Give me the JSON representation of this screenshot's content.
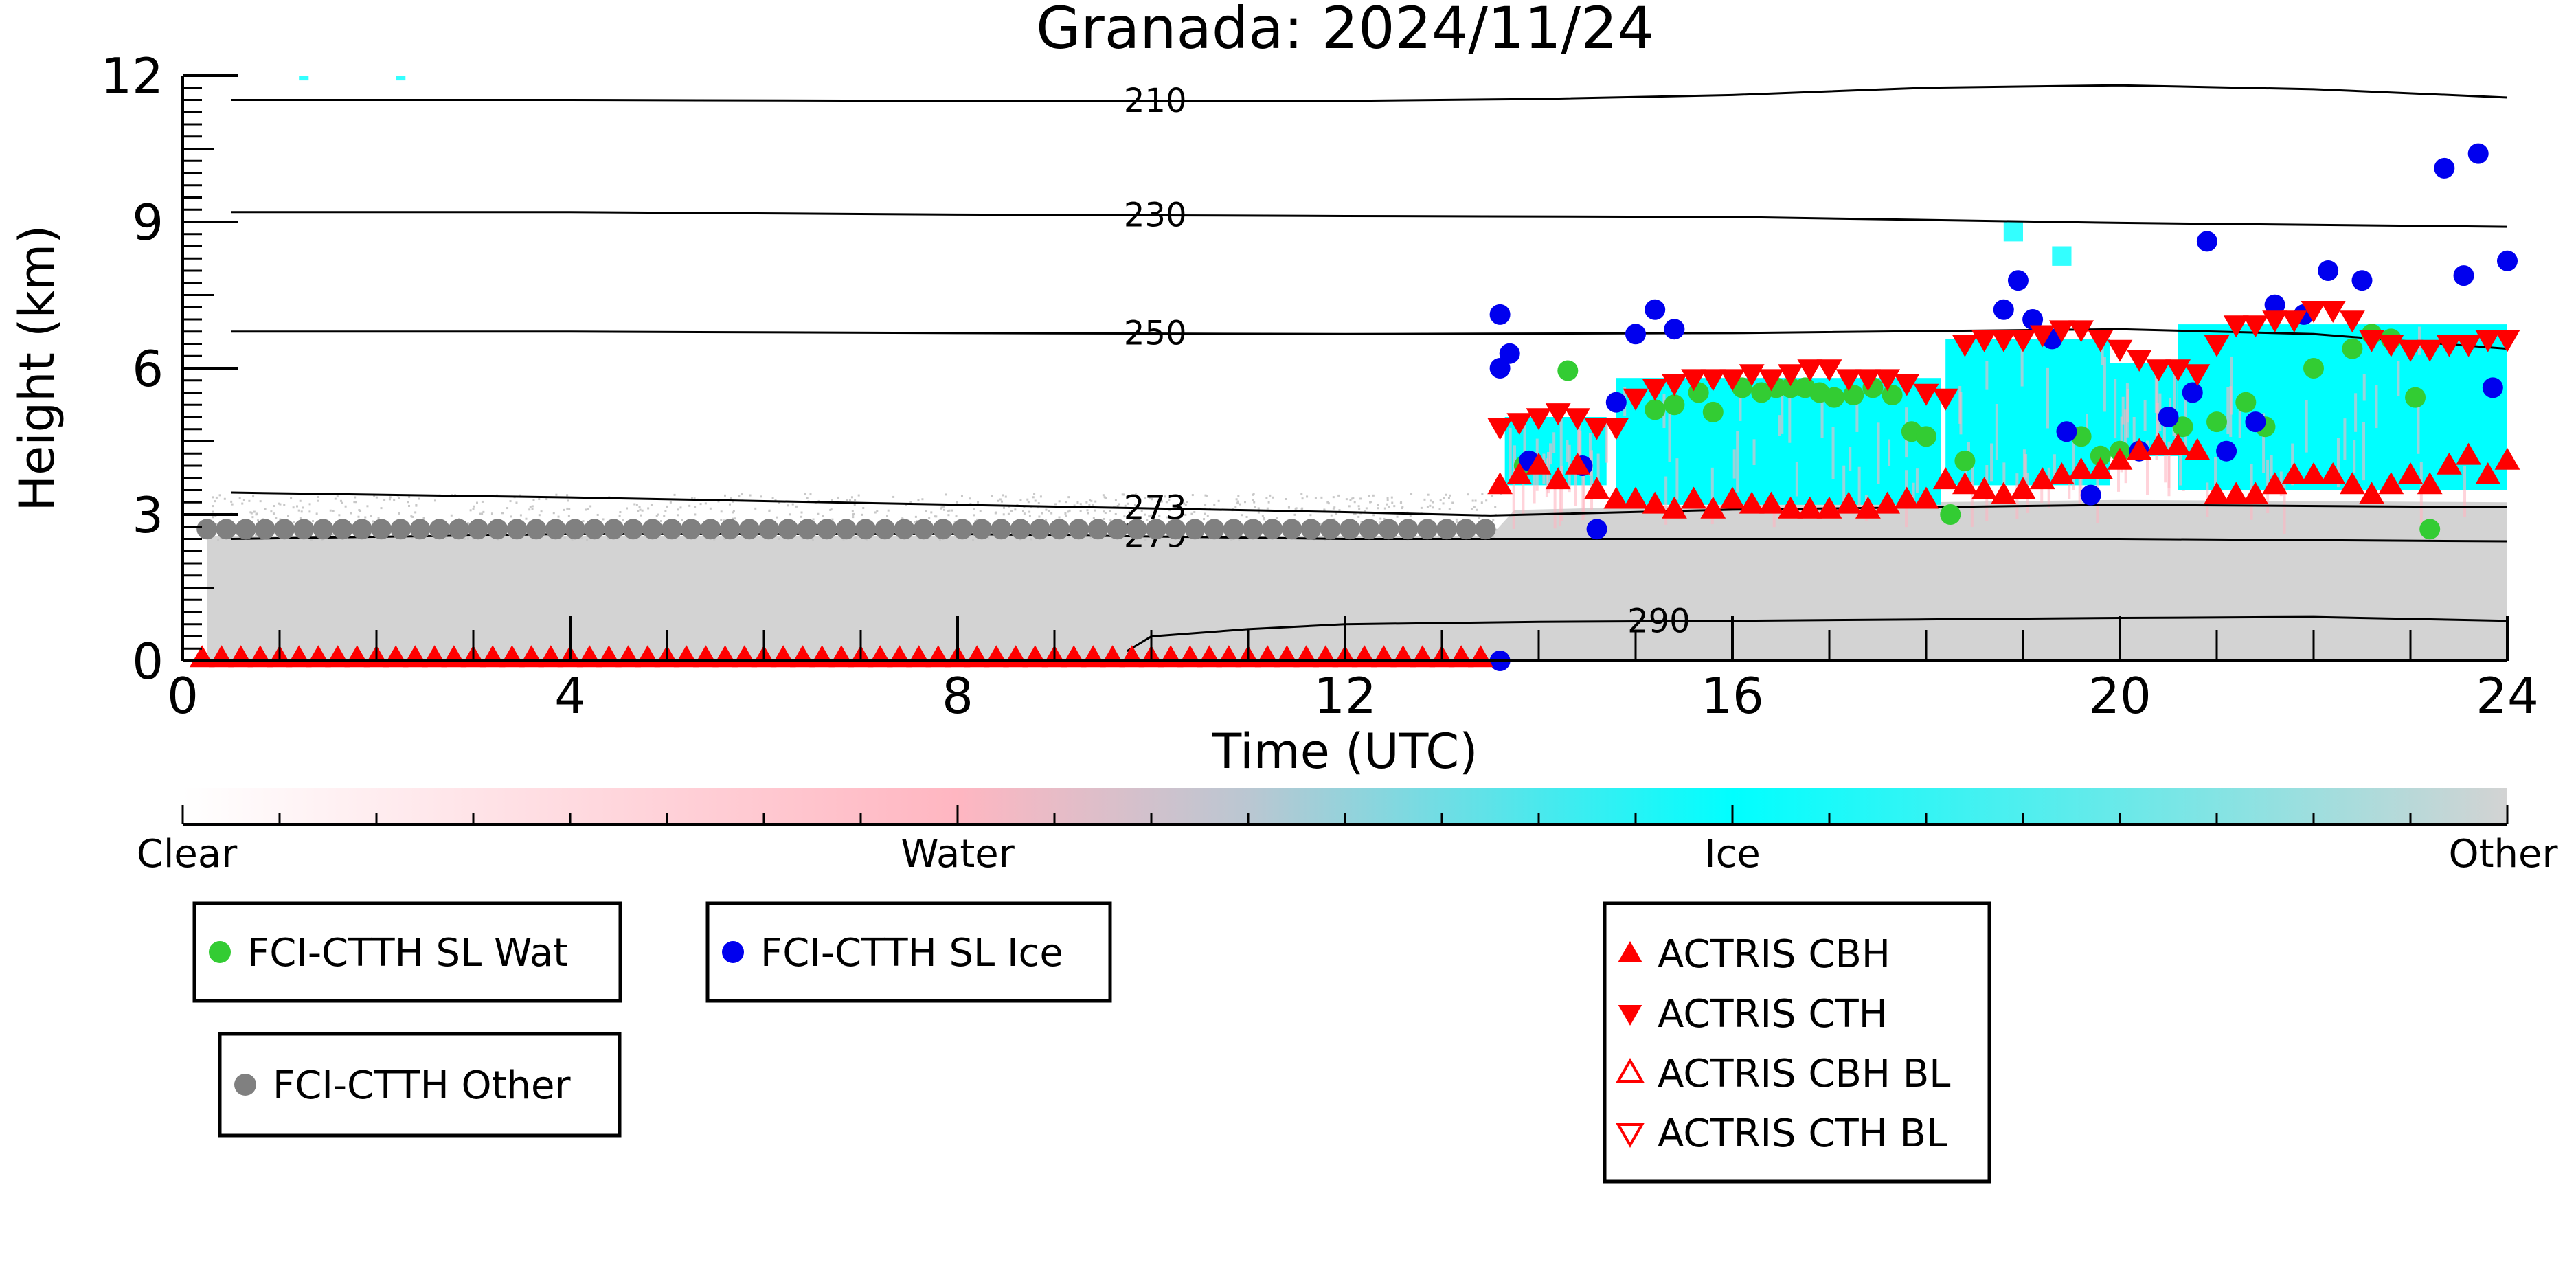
{
  "chart_data": {
    "type": "scatter",
    "title": "Granada: 2024/11/24",
    "xlabel": "Time (UTC)",
    "ylabel": "Height (km)",
    "xlim": [
      0,
      24
    ],
    "ylim": [
      0,
      12
    ],
    "xticks": [
      0,
      4,
      8,
      12,
      16,
      20,
      24
    ],
    "yticks": [
      0,
      3,
      6,
      9,
      12
    ],
    "temperature_isolines": [
      {
        "label": "210",
        "x": [
          0.5,
          4,
          8,
          12,
          14,
          16,
          18,
          20,
          22,
          24
        ],
        "y": [
          11.5,
          11.5,
          11.48,
          11.48,
          11.52,
          11.6,
          11.75,
          11.8,
          11.72,
          11.55
        ],
        "label_x": 9.7
      },
      {
        "label": "230",
        "x": [
          0.5,
          4,
          8,
          12,
          16,
          20,
          24
        ],
        "y": [
          9.2,
          9.2,
          9.15,
          9.12,
          9.1,
          8.98,
          8.9
        ],
        "label_x": 9.7
      },
      {
        "label": "250",
        "x": [
          0.5,
          4,
          8,
          12,
          16,
          20,
          22,
          24
        ],
        "y": [
          6.75,
          6.75,
          6.72,
          6.7,
          6.72,
          6.8,
          6.7,
          6.4
        ],
        "label_x": 9.7
      },
      {
        "label": "273",
        "x": [
          0.5,
          4,
          8,
          12,
          13.5,
          16,
          20,
          24
        ],
        "y": [
          3.45,
          3.35,
          3.2,
          3.05,
          2.98,
          3.1,
          3.2,
          3.15
        ],
        "label_x": 9.7
      },
      {
        "label": "279",
        "x": [
          0.5,
          4,
          8,
          12,
          16,
          20,
          24
        ],
        "y": [
          2.5,
          2.6,
          2.6,
          2.5,
          2.5,
          2.5,
          2.45
        ],
        "label_x": 9.7
      },
      {
        "label": "290",
        "x": [
          9.75,
          10,
          11,
          12,
          14,
          16,
          18,
          20,
          22,
          24
        ],
        "y": [
          0.2,
          0.5,
          0.65,
          0.75,
          0.8,
          0.82,
          0.85,
          0.88,
          0.9,
          0.82
        ],
        "label_x": 14.9
      }
    ],
    "classification_colorbar": {
      "labels": [
        "Clear",
        "Water",
        "Ice",
        "Other"
      ],
      "colors": [
        "#ffffff",
        "#ffb6c1",
        "#00ffff",
        "#d3d3d3"
      ]
    },
    "series": [
      {
        "name": "FCI-CTTH SL Wat",
        "marker": "circle",
        "color": "#33cc33",
        "x": [
          13.85,
          14.3,
          15.2,
          15.4,
          15.65,
          15.8,
          16.1,
          16.3,
          16.45,
          16.6,
          16.75,
          16.9,
          17.05,
          17.25,
          17.45,
          17.65,
          17.85,
          18.0,
          18.25,
          18.4,
          19.6,
          19.8,
          20.0,
          20.65,
          21.0,
          21.3,
          21.5,
          22.0,
          22.4,
          22.6,
          22.8,
          23.05,
          23.2
        ],
        "y": [
          4.0,
          5.95,
          5.15,
          5.25,
          5.5,
          5.1,
          5.6,
          5.5,
          5.6,
          5.6,
          5.6,
          5.5,
          5.4,
          5.45,
          5.6,
          5.45,
          4.7,
          4.6,
          3.0,
          4.1,
          4.6,
          4.2,
          4.3,
          4.8,
          4.9,
          5.3,
          4.8,
          6.0,
          6.4,
          6.7,
          6.6,
          5.4,
          2.7
        ]
      },
      {
        "name": "FCI-CTTH SL Ice",
        "marker": "circle",
        "color": "#0000ee",
        "x": [
          13.6,
          13.6,
          13.7,
          13.9,
          14.45,
          14.6,
          14.8,
          15.0,
          15.2,
          15.4,
          18.8,
          18.95,
          19.1,
          19.3,
          19.45,
          19.7,
          20.2,
          20.5,
          20.75,
          20.9,
          21.1,
          21.4,
          21.6,
          21.9,
          22.15,
          22.5,
          23.35,
          23.55,
          23.7,
          23.85,
          24.0,
          13.6
        ],
        "y": [
          7.1,
          6.0,
          6.3,
          4.1,
          4.0,
          2.7,
          5.3,
          6.7,
          7.2,
          6.8,
          7.2,
          7.8,
          7.0,
          6.6,
          4.7,
          3.4,
          4.3,
          5.0,
          5.5,
          8.6,
          4.3,
          4.9,
          7.3,
          7.1,
          8.0,
          7.8,
          10.1,
          7.9,
          10.4,
          5.6,
          8.2,
          0.0
        ]
      },
      {
        "name": "FCI-CTTH Other",
        "marker": "circle",
        "color": "#808080",
        "x_start": 0.25,
        "x_end": 13.6,
        "x_step": 0.2,
        "y_constant": 2.7
      },
      {
        "name": "ACTRIS CBH",
        "marker": "triangle-up",
        "color": "#ff0000",
        "x": [
          0.2,
          0.4,
          0.6,
          0.8,
          1.0,
          1.2,
          1.4,
          1.6,
          1.8,
          2.0,
          2.2,
          2.4,
          2.6,
          2.8,
          3.0,
          3.2,
          3.4,
          3.6,
          3.8,
          4.0,
          4.2,
          4.4,
          4.6,
          4.8,
          5.0,
          5.2,
          5.4,
          5.6,
          5.8,
          6.0,
          6.2,
          6.4,
          6.6,
          6.8,
          7.0,
          7.2,
          7.4,
          7.6,
          7.8,
          8.0,
          8.2,
          8.4,
          8.6,
          8.8,
          9.0,
          9.2,
          9.4,
          9.6,
          9.8,
          10.0,
          10.2,
          10.4,
          10.6,
          10.8,
          11.0,
          11.2,
          11.4,
          11.6,
          11.8,
          12.0,
          12.2,
          12.4,
          12.6,
          12.8,
          13.0,
          13.2,
          13.4,
          13.6,
          13.8,
          14.0,
          14.2,
          14.4,
          14.6,
          14.8,
          15.0,
          15.2,
          15.4,
          15.6,
          15.8,
          16.0,
          16.2,
          16.4,
          16.6,
          16.8,
          17.0,
          17.2,
          17.4,
          17.6,
          17.8,
          18.0,
          18.2,
          18.4,
          18.6,
          18.8,
          19.0,
          19.2,
          19.4,
          19.6,
          19.8,
          20.0,
          20.2,
          20.4,
          20.6,
          20.8,
          21.0,
          21.2,
          21.4,
          21.6,
          21.8,
          22.0,
          22.2,
          22.4,
          22.6,
          22.8,
          23.0,
          23.2,
          23.4,
          23.6,
          23.8,
          24.0
        ],
        "y": [
          0.05,
          0.05,
          0.05,
          0.05,
          0.05,
          0.05,
          0.05,
          0.05,
          0.05,
          0.05,
          0.05,
          0.05,
          0.05,
          0.05,
          0.05,
          0.05,
          0.05,
          0.05,
          0.05,
          0.05,
          0.05,
          0.05,
          0.05,
          0.05,
          0.05,
          0.05,
          0.05,
          0.05,
          0.05,
          0.05,
          0.05,
          0.05,
          0.05,
          0.05,
          0.05,
          0.05,
          0.05,
          0.05,
          0.05,
          0.05,
          0.05,
          0.05,
          0.05,
          0.05,
          0.05,
          0.05,
          0.05,
          0.05,
          0.05,
          0.05,
          0.05,
          0.05,
          0.05,
          0.05,
          0.05,
          0.05,
          0.05,
          0.05,
          0.05,
          0.05,
          0.05,
          0.05,
          0.05,
          0.05,
          0.05,
          0.05,
          0.05,
          3.6,
          3.8,
          4.0,
          3.7,
          4.0,
          3.5,
          3.3,
          3.3,
          3.2,
          3.1,
          3.3,
          3.1,
          3.3,
          3.2,
          3.2,
          3.1,
          3.1,
          3.1,
          3.2,
          3.1,
          3.2,
          3.3,
          3.3,
          3.7,
          3.6,
          3.5,
          3.4,
          3.5,
          3.7,
          3.8,
          3.9,
          3.9,
          4.1,
          4.3,
          4.4,
          4.4,
          4.3,
          3.4,
          3.4,
          3.4,
          3.6,
          3.8,
          3.8,
          3.8,
          3.6,
          3.4,
          3.6,
          3.8,
          3.6,
          4.0,
          4.2,
          3.8,
          4.1
        ],
        "filled": true
      },
      {
        "name": "ACTRIS CTH",
        "marker": "triangle-down",
        "color": "#ff0000",
        "x": [
          13.6,
          13.8,
          14.0,
          14.2,
          14.4,
          14.6,
          14.8,
          15.0,
          15.2,
          15.4,
          15.6,
          15.8,
          16.0,
          16.2,
          16.4,
          16.6,
          16.8,
          17.0,
          17.2,
          17.4,
          17.6,
          17.8,
          18.0,
          18.2,
          18.4,
          18.6,
          18.8,
          19.0,
          19.2,
          19.4,
          19.6,
          19.8,
          20.0,
          20.2,
          20.4,
          20.6,
          20.8,
          21.0,
          21.2,
          21.4,
          21.6,
          21.8,
          22.0,
          22.2,
          22.4,
          22.6,
          22.8,
          23.0,
          23.2,
          23.4,
          23.6,
          23.8,
          24.0
        ],
        "y": [
          4.8,
          4.9,
          5.0,
          5.1,
          5.0,
          4.8,
          4.8,
          5.4,
          5.6,
          5.7,
          5.8,
          5.8,
          5.8,
          5.9,
          5.8,
          5.9,
          6.0,
          6.0,
          5.8,
          5.8,
          5.8,
          5.7,
          5.5,
          5.4,
          6.5,
          6.6,
          6.6,
          6.6,
          6.7,
          6.8,
          6.8,
          6.6,
          6.4,
          6.2,
          6.0,
          6.0,
          5.9,
          6.5,
          6.9,
          6.9,
          7.0,
          7.0,
          7.2,
          7.2,
          7.0,
          6.6,
          6.5,
          6.4,
          6.4,
          6.5,
          6.5,
          6.6,
          6.6
        ],
        "filled": true
      },
      {
        "name": "ACTRIS CBH BL",
        "marker": "triangle-up-open",
        "color": "#ff0000",
        "x": [],
        "y": []
      },
      {
        "name": "ACTRIS CTH BL",
        "marker": "triangle-down-open",
        "color": "#ff0000",
        "x": [],
        "y": []
      }
    ],
    "legends": [
      {
        "group": "wat",
        "entries": [
          "FCI-CTTH SL Wat"
        ]
      },
      {
        "group": "ice",
        "entries": [
          "FCI-CTTH SL Ice"
        ]
      },
      {
        "group": "other",
        "entries": [
          "FCI-CTTH Other"
        ]
      },
      {
        "group": "actris",
        "entries": [
          "ACTRIS CBH",
          "ACTRIS CTH",
          "ACTRIS CBH BL",
          "ACTRIS CTH BL"
        ]
      }
    ]
  }
}
